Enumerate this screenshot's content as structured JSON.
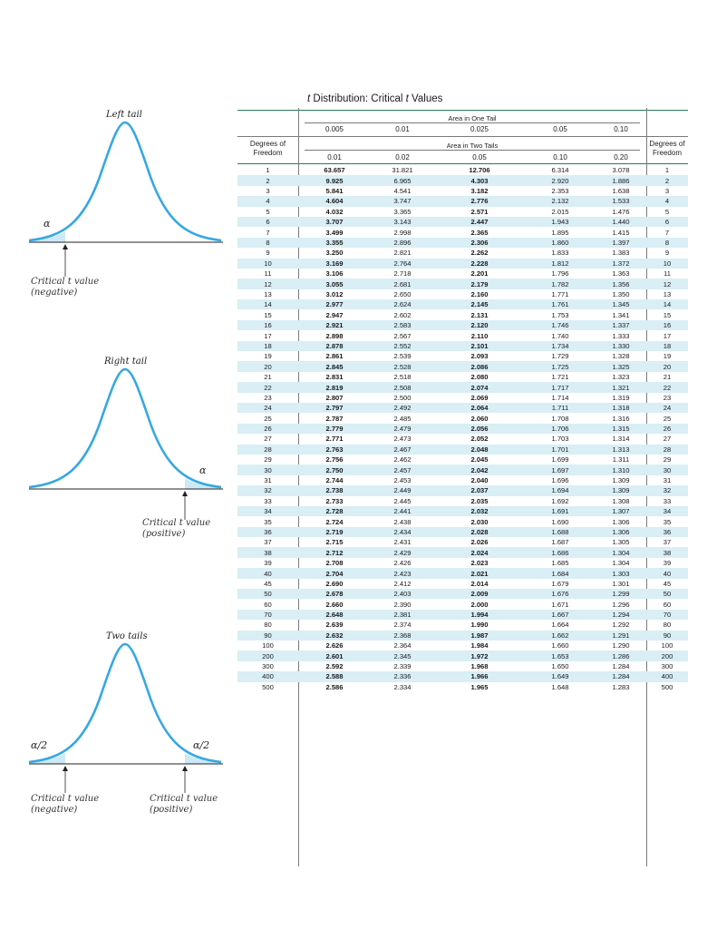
{
  "title": {
    "italic": "t",
    "rest": " Distribution: Critical ",
    "italic2": "t",
    "rest2": " Values"
  },
  "panels": {
    "left": {
      "title": "Left tail",
      "alpha": "α",
      "caption_line1": "Critical t value",
      "caption_line2": "(negative)"
    },
    "right": {
      "title": "Right tail",
      "alpha": "α",
      "caption_line1": "Critical t value",
      "caption_line2": "(positive)"
    },
    "two": {
      "title": "Two tails",
      "alpha_left": "α/2",
      "alpha_right": "α/2",
      "caption_left_line1": "Critical t value",
      "caption_left_line2": "(negative)",
      "caption_right_line1": "Critical t value",
      "caption_right_line2": "(positive)"
    }
  },
  "colors": {
    "curve": "#36a8e0",
    "shade": "#cde9f6",
    "rule": "#2a7a57"
  },
  "table": {
    "one_tail_title": "Area in One Tail",
    "two_tail_title": "Area in Two Tails",
    "dof_label_line1": "Degrees of",
    "dof_label_line2": "Freedom",
    "one_tail_heads": [
      "0.005",
      "0.01",
      "0.025",
      "0.05",
      "0.10"
    ],
    "two_tail_heads": [
      "0.01",
      "0.02",
      "0.05",
      "0.10",
      "0.20"
    ],
    "rows": [
      [
        "1",
        "63.657",
        "31.821",
        "12.706",
        "6.314",
        "3.078",
        "1"
      ],
      [
        "2",
        "9.925",
        "6.965",
        "4.303",
        "2.920",
        "1.886",
        "2"
      ],
      [
        "3",
        "5.841",
        "4.541",
        "3.182",
        "2.353",
        "1.638",
        "3"
      ],
      [
        "4",
        "4.604",
        "3.747",
        "2.776",
        "2.132",
        "1.533",
        "4"
      ],
      [
        "5",
        "4.032",
        "3.365",
        "2.571",
        "2.015",
        "1.476",
        "5"
      ],
      [
        "6",
        "3.707",
        "3.143",
        "2.447",
        "1.943",
        "1.440",
        "6"
      ],
      [
        "7",
        "3.499",
        "2.998",
        "2.365",
        "1.895",
        "1.415",
        "7"
      ],
      [
        "8",
        "3.355",
        "2.896",
        "2.306",
        "1.860",
        "1.397",
        "8"
      ],
      [
        "9",
        "3.250",
        "2.821",
        "2.262",
        "1.833",
        "1.383",
        "9"
      ],
      [
        "10",
        "3.169",
        "2.764",
        "2.228",
        "1.812",
        "1.372",
        "10"
      ],
      [
        "11",
        "3.106",
        "2.718",
        "2.201",
        "1.796",
        "1.363",
        "11"
      ],
      [
        "12",
        "3.055",
        "2.681",
        "2.179",
        "1.782",
        "1.356",
        "12"
      ],
      [
        "13",
        "3.012",
        "2.650",
        "2.160",
        "1.771",
        "1.350",
        "13"
      ],
      [
        "14",
        "2.977",
        "2.624",
        "2.145",
        "1.761",
        "1.345",
        "14"
      ],
      [
        "15",
        "2.947",
        "2.602",
        "2.131",
        "1.753",
        "1.341",
        "15"
      ],
      [
        "16",
        "2.921",
        "2.583",
        "2.120",
        "1.746",
        "1.337",
        "16"
      ],
      [
        "17",
        "2.898",
        "2.567",
        "2.110",
        "1.740",
        "1.333",
        "17"
      ],
      [
        "18",
        "2.878",
        "2.552",
        "2.101",
        "1.734",
        "1.330",
        "18"
      ],
      [
        "19",
        "2.861",
        "2.539",
        "2.093",
        "1.729",
        "1.328",
        "19"
      ],
      [
        "20",
        "2.845",
        "2.528",
        "2.086",
        "1.725",
        "1.325",
        "20"
      ],
      [
        "21",
        "2.831",
        "2.518",
        "2.080",
        "1.721",
        "1.323",
        "21"
      ],
      [
        "22",
        "2.819",
        "2.508",
        "2.074",
        "1.717",
        "1.321",
        "22"
      ],
      [
        "23",
        "2.807",
        "2.500",
        "2.069",
        "1.714",
        "1.319",
        "23"
      ],
      [
        "24",
        "2.797",
        "2.492",
        "2.064",
        "1.711",
        "1.318",
        "24"
      ],
      [
        "25",
        "2.787",
        "2.485",
        "2.060",
        "1.708",
        "1.316",
        "25"
      ],
      [
        "26",
        "2.779",
        "2.479",
        "2.056",
        "1.706",
        "1.315",
        "26"
      ],
      [
        "27",
        "2.771",
        "2.473",
        "2.052",
        "1.703",
        "1.314",
        "27"
      ],
      [
        "28",
        "2.763",
        "2.467",
        "2.048",
        "1.701",
        "1.313",
        "28"
      ],
      [
        "29",
        "2.756",
        "2.462",
        "2.045",
        "1.699",
        "1.311",
        "29"
      ],
      [
        "30",
        "2.750",
        "2.457",
        "2.042",
        "1.697",
        "1.310",
        "30"
      ],
      [
        "31",
        "2.744",
        "2.453",
        "2.040",
        "1.696",
        "1.309",
        "31"
      ],
      [
        "32",
        "2.738",
        "2.449",
        "2.037",
        "1.694",
        "1.309",
        "32"
      ],
      [
        "33",
        "2.733",
        "2.445",
        "2.035",
        "1.692",
        "1.308",
        "33"
      ],
      [
        "34",
        "2.728",
        "2.441",
        "2.032",
        "1.691",
        "1.307",
        "34"
      ],
      [
        "35",
        "2.724",
        "2.438",
        "2.030",
        "1.690",
        "1.306",
        "35"
      ],
      [
        "36",
        "2.719",
        "2.434",
        "2.028",
        "1.688",
        "1.306",
        "36"
      ],
      [
        "37",
        "2.715",
        "2.431",
        "2.026",
        "1.687",
        "1.305",
        "37"
      ],
      [
        "38",
        "2.712",
        "2.429",
        "2.024",
        "1.686",
        "1.304",
        "38"
      ],
      [
        "39",
        "2.708",
        "2.426",
        "2.023",
        "1.685",
        "1.304",
        "39"
      ],
      [
        "40",
        "2.704",
        "2.423",
        "2.021",
        "1.684",
        "1.303",
        "40"
      ],
      [
        "45",
        "2.690",
        "2.412",
        "2.014",
        "1.679",
        "1.301",
        "45"
      ],
      [
        "50",
        "2.678",
        "2.403",
        "2.009",
        "1.676",
        "1.299",
        "50"
      ],
      [
        "60",
        "2.660",
        "2.390",
        "2.000",
        "1.671",
        "1.296",
        "60"
      ],
      [
        "70",
        "2.648",
        "2.381",
        "1.994",
        "1.667",
        "1.294",
        "70"
      ],
      [
        "80",
        "2.639",
        "2.374",
        "1.990",
        "1.664",
        "1.292",
        "80"
      ],
      [
        "90",
        "2.632",
        "2.368",
        "1.987",
        "1.662",
        "1.291",
        "90"
      ],
      [
        "100",
        "2.626",
        "2.364",
        "1.984",
        "1.660",
        "1.290",
        "100"
      ],
      [
        "200",
        "2.601",
        "2.345",
        "1.972",
        "1.653",
        "1.286",
        "200"
      ],
      [
        "300",
        "2.592",
        "2.339",
        "1.968",
        "1.650",
        "1.284",
        "300"
      ],
      [
        "400",
        "2.588",
        "2.336",
        "1.966",
        "1.649",
        "1.284",
        "400"
      ],
      [
        "500",
        "2.586",
        "2.334",
        "1.965",
        "1.648",
        "1.283",
        "500"
      ]
    ]
  }
}
